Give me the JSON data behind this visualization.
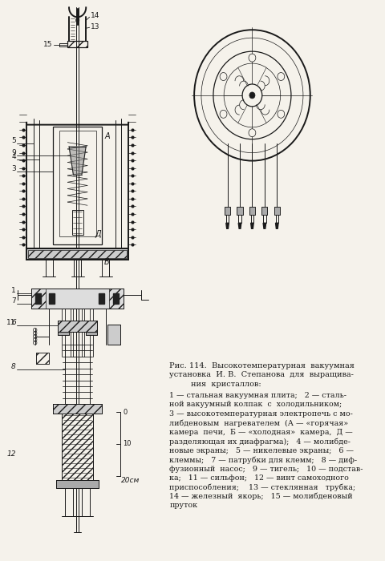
{
  "bg_color": "#f5f2eb",
  "line_color": "#1a1a1a",
  "fig_width": 4.8,
  "fig_height": 7.0,
  "dpi": 100,
  "caption_title": "Рис. 114.  Высокотемпературная  вакуумная",
  "caption_line2": "установка  И. В.  Степанова  для  выращива-",
  "caption_line3": "ния  кристаллов:",
  "caption_body": [
    "1 — стальная вакуумная плита;   2 — сталь-",
    "ной вакуумный колпак  с  холодильником;",
    "3 — высокотемпературная электропечь с мо-",
    "либденовым  нагревателем  (А — «горячая»",
    "камера  печи,  Б — «холодная»  камера,  Д —",
    "разделяющая их диафрагма);   4 — молибде-",
    "новые экраны;   5 — никелевые экраны;   6 —",
    "клеммы;   7 — патрубки для клемм;   8 — диф-",
    "фузионный  насос;   9 — тигель;   10 — подстав-",
    "ка;   11 — сильфон;   12 — винт самоходного",
    "приспособления;    13 — стеклянная   трубка;",
    "14 — железный  якорь;   15 — молибденовый",
    "пруток"
  ]
}
